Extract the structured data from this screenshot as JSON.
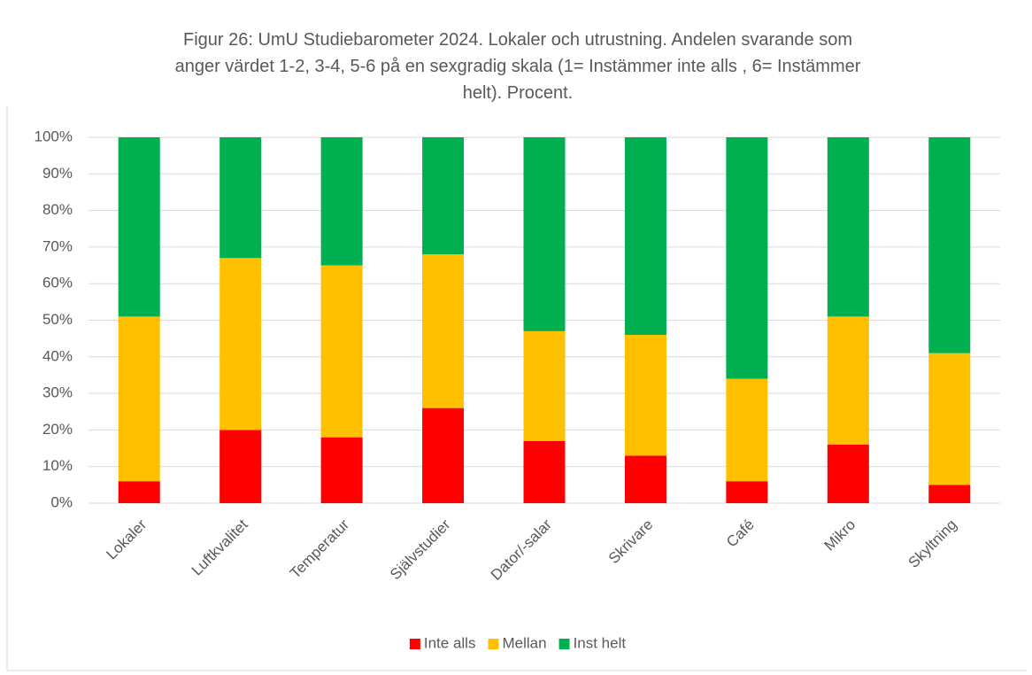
{
  "chart_data": {
    "type": "stacked_bar",
    "title": "Figur 26: UmU Studiebarometer 2024. Lokaler och utrustning. Andelen svarande som anger värdet 1-2, 3-4, 5-6 på en sexgradig skala (1= Instämmer inte alls , 6= Instämmer helt). Procent.",
    "categories": [
      "Lokaler",
      "Luftkvalitet",
      "Temperatur",
      "Självstudier",
      "Dator/-salar",
      "Skrivare",
      "Café",
      "Mikro",
      "Skyltning"
    ],
    "series": [
      {
        "name": "Inte alls",
        "color": "#ff0000",
        "values": [
          6,
          20,
          18,
          26,
          17,
          13,
          6,
          16,
          5
        ]
      },
      {
        "name": "Mellan",
        "color": "#ffc000",
        "values": [
          45,
          47,
          47,
          42,
          30,
          33,
          28,
          35,
          36
        ]
      },
      {
        "name": "Inst helt",
        "color": "#00b050",
        "values": [
          49,
          33,
          35,
          32,
          53,
          54,
          66,
          49,
          59
        ]
      }
    ],
    "ylim": [
      0,
      100
    ],
    "yticks": [
      {
        "value": 0,
        "label": "0%"
      },
      {
        "value": 10,
        "label": "10%"
      },
      {
        "value": 20,
        "label": "20%"
      },
      {
        "value": 30,
        "label": "30%"
      },
      {
        "value": 40,
        "label": "40%"
      },
      {
        "value": 50,
        "label": "50%"
      },
      {
        "value": 60,
        "label": "60%"
      },
      {
        "value": 70,
        "label": "70%"
      },
      {
        "value": 80,
        "label": "80%"
      },
      {
        "value": 90,
        "label": "90%"
      },
      {
        "value": 100,
        "label": "100%"
      }
    ],
    "grid": true,
    "legend": "bottom"
  }
}
